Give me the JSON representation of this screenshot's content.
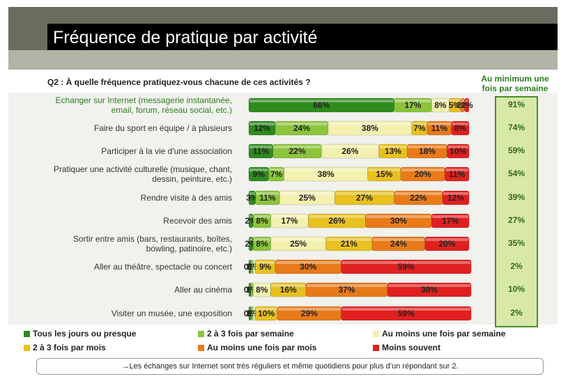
{
  "title": "Fréquence de pratique par activité",
  "question": "Q2 : À quelle fréquence pratiquez-vous chacune de ces activités ?",
  "summary_header": "Au minimum une fois par semaine",
  "footnote": "→Les échanges sur Internet sont très réguliers et même quotidiens pour plus d’un répondant sur 2.",
  "colors": {
    "tous_les_jours": "#2e8b1e",
    "2_3_semaine": "#8cc43c",
    "une_semaine": "#f3f0b0",
    "2_3_mois": "#e8c020",
    "une_mois": "#e87a1a",
    "moins_souvent": "#e02020"
  },
  "chart_data": {
    "type": "bar",
    "stacked": true,
    "orientation": "horizontal",
    "categories": [
      "Echanger sur Internet (messagerie instantanée, email, forum, réseau social, etc.)",
      "Faire du sport en équipe / à plusieurs",
      "Participer à la vie d'une association",
      "Pratiquer une activité culturelle (musique, chant, dessin, peinture, etc.)",
      "Rendre visite à des amis",
      "Recevoir des amis",
      "Sortir entre amis (bars, restaurants, boîtes, bowling, patinoire, etc.)",
      "Aller au théâtre, spectacle ou concert",
      "Aller au cinéma",
      "Visiter un musée, une exposition"
    ],
    "series": [
      {
        "name": "Tous les jours ou presque",
        "values": [
          66,
          12,
          11,
          9,
          3,
          2,
          2,
          0,
          0,
          0
        ]
      },
      {
        "name": "2 à 3 fois par semaine",
        "values": [
          17,
          24,
          22,
          7,
          11,
          8,
          8,
          1,
          1,
          1
        ]
      },
      {
        "name": "Au moins une fois par semaine",
        "values": [
          8,
          38,
          26,
          38,
          25,
          17,
          25,
          1,
          8,
          1
        ]
      },
      {
        "name": "2 à 3 fois par mois",
        "values": [
          5,
          7,
          13,
          15,
          27,
          26,
          21,
          9,
          16,
          10
        ]
      },
      {
        "name": "Au moins une fois par mois",
        "values": [
          2,
          11,
          18,
          20,
          22,
          30,
          24,
          30,
          37,
          29
        ]
      },
      {
        "name": "Moins souvent",
        "values": [
          2,
          8,
          10,
          11,
          12,
          17,
          20,
          59,
          38,
          59
        ]
      }
    ],
    "labels": [
      [
        "66%",
        "17%",
        "8%",
        "5%",
        "2%",
        "2%"
      ],
      [
        "12%",
        "24%",
        "38%",
        "7%",
        "11%",
        "8%"
      ],
      [
        "11%",
        "22%",
        "26%",
        "13%",
        "18%",
        "10%"
      ],
      [
        "9%",
        "7%",
        "38%",
        "15%",
        "20%",
        "11%"
      ],
      [
        "3%",
        "11%",
        "25%",
        "27%",
        "22%",
        "12%"
      ],
      [
        "2%",
        "8%",
        "17%",
        "26%",
        "30%",
        "17%"
      ],
      [
        "2%",
        "8%",
        "25%",
        "21%",
        "24%",
        "20%"
      ],
      [
        "0%",
        "1%",
        "1%",
        "9%",
        "30%",
        "59%"
      ],
      [
        "0%",
        "1%",
        "8%",
        "16%",
        "37%",
        "38%"
      ],
      [
        "0%",
        "1%",
        "1%",
        "10%",
        "29%",
        "59%"
      ]
    ],
    "summary": [
      "91%",
      "74%",
      "59%",
      "54%",
      "39%",
      "27%",
      "35%",
      "2%",
      "10%",
      "2%"
    ],
    "legend": [
      "Tous les jours ou presque",
      "2 à 3 fois par semaine",
      "Au moins une fois par semaine",
      "2 à 3 fois par mois",
      "Au moins une fois par mois",
      "Moins souvent"
    ],
    "legend_position": "bottom"
  },
  "row_labels": [
    [
      "Echanger sur Internet (messagerie instantanée,",
      "email, forum, réseau social, etc.)"
    ],
    [
      "Faire du sport en équipe / à plusieurs"
    ],
    [
      "Participer à la vie d'une association"
    ],
    [
      "Pratiquer une activité culturelle (musique, chant,",
      "dessin, peinture, etc.)"
    ],
    [
      "Rendre visite à des amis"
    ],
    [
      "Recevoir des amis"
    ],
    [
      "Sortir entre amis (bars, restaurants, boîtes,",
      "bowling, patinoire, etc.)"
    ],
    [
      "Aller au théâtre, spectacle ou concert"
    ],
    [
      "Aller au cinéma"
    ],
    [
      "Visiter un musée, une exposition"
    ]
  ]
}
